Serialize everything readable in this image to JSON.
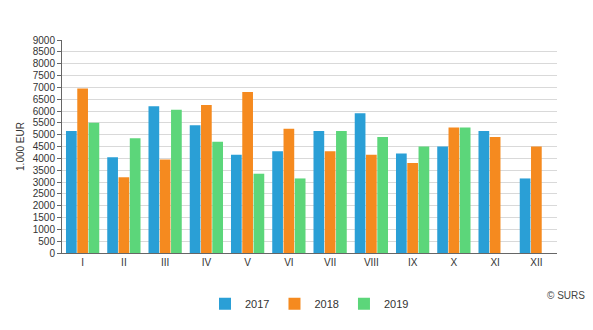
{
  "chart_data": {
    "type": "bar",
    "y_label": "1.000 EUR",
    "annotations": [
      "© SURS"
    ],
    "categories": [
      "I",
      "II",
      "III",
      "IV",
      "V",
      "VI",
      "VII",
      "VIII",
      "IX",
      "X",
      "XI",
      "XII"
    ],
    "series": [
      {
        "name": "2017",
        "color": "#2a9fd6",
        "values": [
          5150,
          4050,
          6200,
          5400,
          4150,
          4300,
          5150,
          5900,
          4200,
          4500,
          5150,
          3150
        ]
      },
      {
        "name": "2018",
        "color": "#f58a1f",
        "values": [
          6950,
          3200,
          3950,
          6250,
          6800,
          5250,
          4300,
          4150,
          3800,
          5300,
          4900,
          4500
        ]
      },
      {
        "name": "2019",
        "color": "#5cd67a",
        "values": [
          5500,
          4850,
          6050,
          4700,
          3350,
          3150,
          5150,
          4900,
          4500,
          5300,
          null,
          null
        ]
      }
    ],
    "ylim": [
      0,
      9000
    ],
    "yticks": [
      0,
      500,
      1000,
      1500,
      2000,
      2500,
      3000,
      3500,
      4000,
      4500,
      5000,
      5500,
      6000,
      6500,
      7000,
      7500,
      8000,
      8500,
      9000
    ],
    "grid": true,
    "legend": "bottom"
  }
}
